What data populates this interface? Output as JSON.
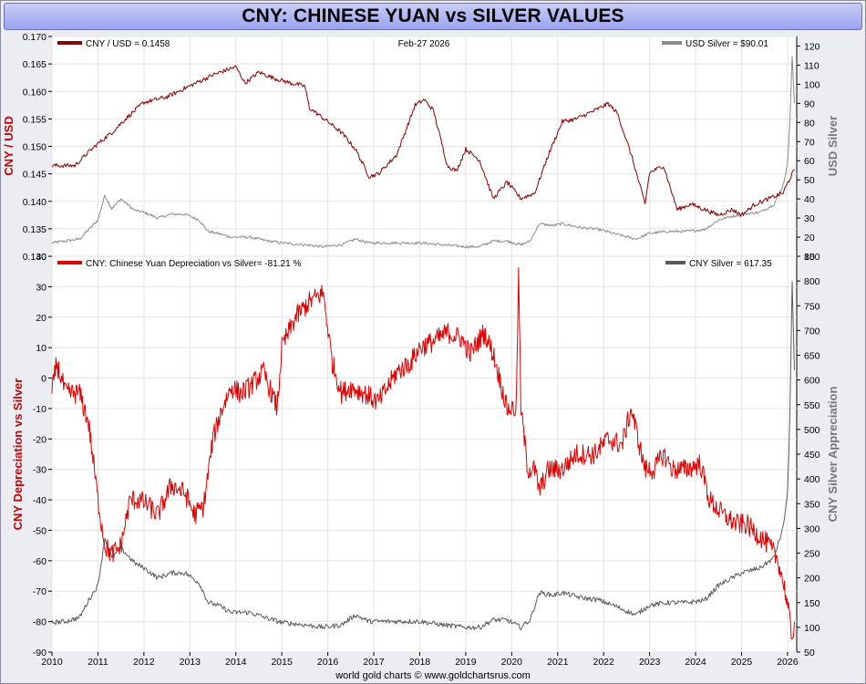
{
  "page": {
    "title": "CNY: CHINESE YUAN vs SILVER VALUES",
    "footer": "world gold charts © www.goldchartsrus.com"
  },
  "colors": {
    "cny_line": "#8b0000",
    "silver_line": "#8c8c8c",
    "depreciation_line": "#e00000",
    "silver_appreciation_line": "#5a5a5a",
    "axis_red": "#cc0000",
    "axis_grey": "#777777"
  },
  "chart_data": [
    {
      "type": "line",
      "date_label": "Feb-27  2026",
      "grid": true,
      "x_ticks": [],
      "left_axis": {
        "label": "CNY / USD",
        "range": [
          0.13,
          0.17
        ],
        "ticks": [
          "0.130",
          "0.135",
          "0.140",
          "0.145",
          "0.150",
          "0.155",
          "0.160",
          "0.165",
          "0.170"
        ]
      },
      "right_axis": {
        "label": "USD Silver",
        "range": [
          10,
          125
        ],
        "ticks": [
          "10",
          "20",
          "30",
          "40",
          "50",
          "60",
          "70",
          "80",
          "90",
          "100",
          "110",
          "120"
        ]
      },
      "series": [
        {
          "name": "CNY / USD = 0.1458",
          "axis": "left",
          "x": [
            2010.0,
            2010.5,
            2010.8,
            2011.0,
            2011.3,
            2011.6,
            2012.0,
            2012.5,
            2013.0,
            2013.5,
            2014.0,
            2014.2,
            2014.5,
            2014.8,
            2015.2,
            2015.5,
            2015.6,
            2016.0,
            2016.3,
            2016.6,
            2016.9,
            2017.1,
            2017.5,
            2017.9,
            2018.1,
            2018.3,
            2018.6,
            2018.8,
            2019.0,
            2019.3,
            2019.6,
            2019.9,
            2020.2,
            2020.5,
            2020.8,
            2021.1,
            2021.4,
            2021.8,
            2022.1,
            2022.3,
            2022.6,
            2022.9,
            2023.0,
            2023.3,
            2023.6,
            2023.9,
            2024.2,
            2024.5,
            2024.8,
            2025.0,
            2025.3,
            2025.6,
            2025.9,
            2026.15
          ],
          "values": [
            0.1465,
            0.1465,
            0.149,
            0.1505,
            0.1525,
            0.155,
            0.158,
            0.159,
            0.161,
            0.163,
            0.1645,
            0.1615,
            0.1635,
            0.1625,
            0.1615,
            0.161,
            0.157,
            0.1545,
            0.1525,
            0.1495,
            0.1445,
            0.145,
            0.1485,
            0.1575,
            0.1585,
            0.1565,
            0.1465,
            0.1455,
            0.1495,
            0.1475,
            0.1405,
            0.1435,
            0.1405,
            0.1415,
            0.1485,
            0.1545,
            0.155,
            0.1565,
            0.1578,
            0.156,
            0.1485,
            0.1395,
            0.1452,
            0.1465,
            0.1385,
            0.1395,
            0.1385,
            0.1375,
            0.1385,
            0.1375,
            0.1395,
            0.1405,
            0.1415,
            0.1458
          ]
        },
        {
          "name": "USD Silver  = $90.01",
          "axis": "right",
          "x": [
            2010.0,
            2010.3,
            2010.6,
            2010.8,
            2011.0,
            2011.15,
            2011.3,
            2011.5,
            2011.8,
            2012.0,
            2012.3,
            2012.6,
            2012.9,
            2013.2,
            2013.4,
            2013.6,
            2013.9,
            2014.3,
            2014.7,
            2015.0,
            2015.5,
            2015.9,
            2016.3,
            2016.6,
            2016.9,
            2017.5,
            2018.0,
            2018.5,
            2019.0,
            2019.3,
            2019.6,
            2019.9,
            2020.2,
            2020.4,
            2020.6,
            2020.9,
            2021.1,
            2021.5,
            2021.9,
            2022.2,
            2022.7,
            2023.0,
            2023.4,
            2023.8,
            2024.2,
            2024.5,
            2024.8,
            2025.0,
            2025.4,
            2025.7,
            2025.9,
            2026.0,
            2026.05,
            2026.1,
            2026.15
          ],
          "values": [
            17,
            18,
            19,
            24,
            29,
            42,
            35,
            40,
            34,
            33,
            30,
            32,
            32,
            29,
            23,
            22,
            20,
            20,
            18,
            17,
            16,
            15,
            16,
            19,
            17,
            17,
            17,
            16,
            15,
            15,
            18,
            18,
            16,
            18,
            27,
            26,
            27,
            25,
            24,
            22,
            19,
            22,
            23,
            23,
            24,
            29,
            31,
            32,
            33,
            37,
            47,
            58,
            80,
            115,
            90
          ]
        }
      ]
    },
    {
      "type": "line",
      "grid": true,
      "left_axis": {
        "label": "CNY Depreciation vs Silver",
        "range": [
          -90,
          40
        ],
        "ticks": [
          "-90",
          "-80",
          "-70",
          "-60",
          "-50",
          "-40",
          "-30",
          "-20",
          "-10",
          "0",
          "10",
          "20",
          "30",
          "40"
        ]
      },
      "right_axis": {
        "label": "CNY Silver Appreciation",
        "range": [
          50,
          850
        ],
        "ticks": [
          "50",
          "100",
          "150",
          "200",
          "250",
          "300",
          "350",
          "400",
          "450",
          "500",
          "550",
          "600",
          "650",
          "700",
          "750",
          "800",
          "850"
        ]
      },
      "x_axis": {
        "range": [
          2010,
          2026.2
        ],
        "ticks": [
          "2010",
          "2011",
          "2012",
          "2013",
          "2014",
          "2015",
          "2016",
          "2017",
          "2018",
          "2019",
          "2020",
          "2021",
          "2022",
          "2023",
          "2024",
          "2025",
          "2026"
        ]
      },
      "series": [
        {
          "name": "CNY: Chinese Yuan Depreciation vs Silver= -81.21 %",
          "axis": "left",
          "x": [
            2010.0,
            2010.1,
            2010.3,
            2010.6,
            2010.8,
            2011.0,
            2011.15,
            2011.3,
            2011.5,
            2011.7,
            2011.9,
            2012.1,
            2012.3,
            2012.6,
            2012.9,
            2013.1,
            2013.3,
            2013.5,
            2013.7,
            2013.9,
            2014.1,
            2014.3,
            2014.6,
            2014.9,
            2015.0,
            2015.3,
            2015.6,
            2015.9,
            2016.1,
            2016.3,
            2016.5,
            2016.8,
            2017.1,
            2017.5,
            2017.8,
            2018.0,
            2018.3,
            2018.6,
            2018.9,
            2019.1,
            2019.4,
            2019.6,
            2019.9,
            2020.1,
            2020.15,
            2020.2,
            2020.35,
            2020.5,
            2020.6,
            2020.8,
            2021.1,
            2021.4,
            2021.8,
            2022.1,
            2022.4,
            2022.6,
            2022.9,
            2023.1,
            2023.3,
            2023.5,
            2023.8,
            2024.1,
            2024.3,
            2024.6,
            2024.9,
            2025.1,
            2025.4,
            2025.6,
            2025.8,
            2025.95,
            2026.05,
            2026.1,
            2026.15
          ],
          "values": [
            -5,
            5,
            -5,
            -5,
            -15,
            -40,
            -55,
            -58,
            -55,
            -40,
            -40,
            -42,
            -45,
            -35,
            -38,
            -45,
            -42,
            -20,
            -10,
            -3,
            -5,
            -3,
            2,
            -10,
            10,
            20,
            25,
            28,
            5,
            -5,
            -3,
            -5,
            -8,
            2,
            5,
            10,
            12,
            15,
            13,
            8,
            15,
            8,
            -10,
            -10,
            35,
            -10,
            -30,
            -30,
            -37,
            -30,
            -30,
            -25,
            -25,
            -20,
            -22,
            -10,
            -30,
            -30,
            -25,
            -30,
            -30,
            -28,
            -40,
            -45,
            -48,
            -48,
            -52,
            -55,
            -60,
            -70,
            -80,
            -85,
            -80
          ]
        },
        {
          "name": "CNY Silver = 617.35",
          "axis": "right",
          "x": [
            2010.0,
            2010.3,
            2010.6,
            2010.8,
            2011.0,
            2011.15,
            2011.3,
            2011.5,
            2011.8,
            2012.0,
            2012.3,
            2012.6,
            2012.9,
            2013.2,
            2013.4,
            2013.6,
            2013.9,
            2014.3,
            2014.7,
            2015.0,
            2015.5,
            2015.9,
            2016.3,
            2016.6,
            2016.9,
            2017.5,
            2018.0,
            2018.5,
            2019.0,
            2019.3,
            2019.6,
            2019.9,
            2020.2,
            2020.4,
            2020.6,
            2020.9,
            2021.1,
            2021.5,
            2021.9,
            2022.2,
            2022.7,
            2023.0,
            2023.4,
            2023.8,
            2024.2,
            2024.5,
            2024.8,
            2025.0,
            2025.4,
            2025.7,
            2025.9,
            2026.0,
            2026.05,
            2026.1,
            2026.15
          ],
          "values": [
            110,
            112,
            120,
            155,
            185,
            280,
            240,
            260,
            230,
            220,
            200,
            210,
            210,
            190,
            150,
            145,
            130,
            130,
            118,
            110,
            105,
            100,
            105,
            125,
            112,
            112,
            112,
            105,
            100,
            100,
            115,
            115,
            100,
            115,
            170,
            165,
            170,
            160,
            155,
            145,
            125,
            145,
            150,
            150,
            155,
            185,
            200,
            210,
            220,
            240,
            300,
            370,
            520,
            800,
            620
          ]
        }
      ]
    }
  ]
}
